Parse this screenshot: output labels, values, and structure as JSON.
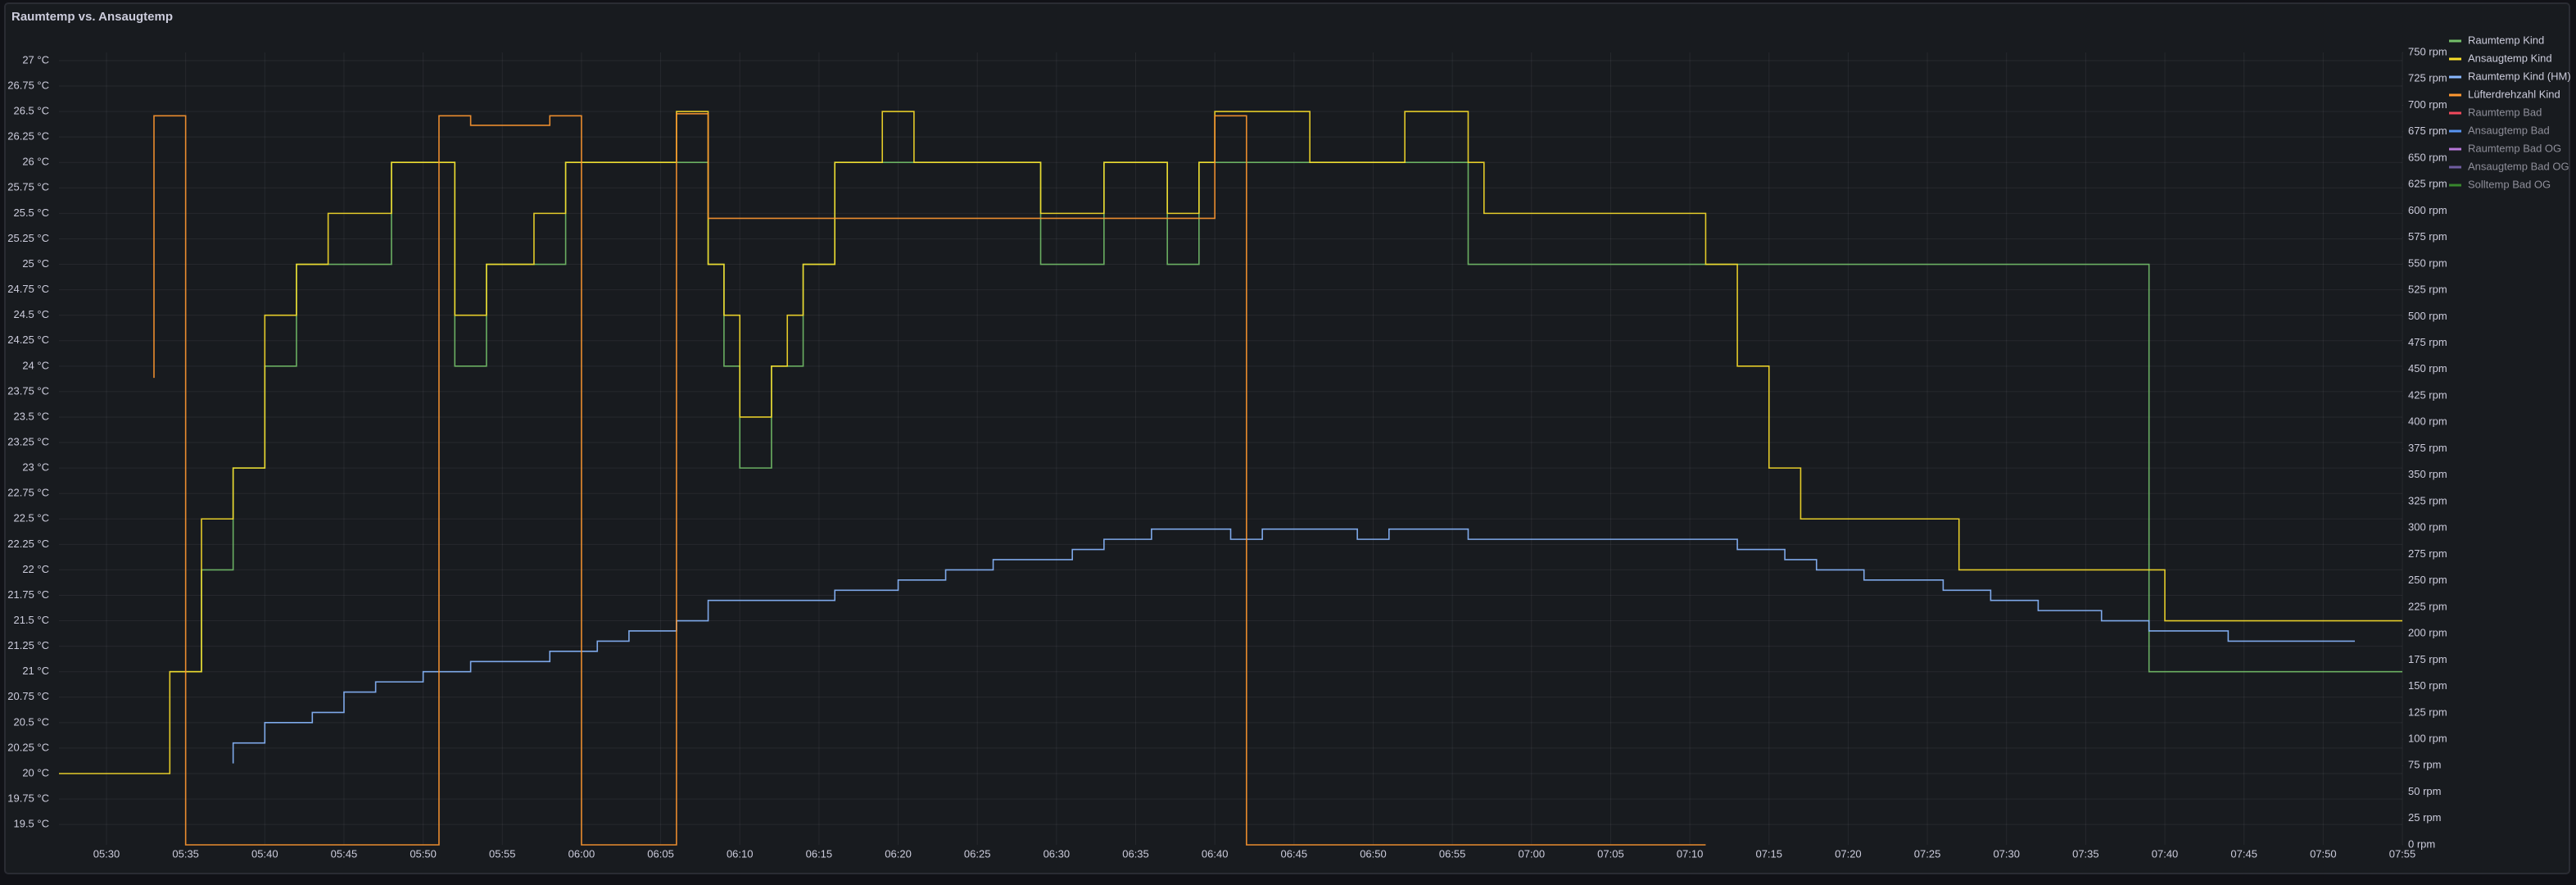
{
  "chart_data": {
    "type": "line",
    "title": "Raumtemp vs. Ansaugtemp",
    "grid": true,
    "legend": "right",
    "interpolation": "step-after",
    "xlim": [
      "05:27",
      "07:55"
    ],
    "xticks": [
      "05:30",
      "05:35",
      "05:40",
      "05:45",
      "05:50",
      "05:55",
      "06:00",
      "06:05",
      "06:10",
      "06:15",
      "06:20",
      "06:25",
      "06:30",
      "06:35",
      "06:40",
      "06:45",
      "06:50",
      "06:55",
      "07:00",
      "07:05",
      "07:10",
      "07:15",
      "07:20",
      "07:25",
      "07:30",
      "07:35",
      "07:40",
      "07:45",
      "07:50",
      "07:55"
    ],
    "ylim": [
      19.3,
      27.08
    ],
    "yticks": [
      {
        "value": 19.5,
        "label": "19.5 °C"
      },
      {
        "value": 19.75,
        "label": "19.75 °C"
      },
      {
        "value": 20,
        "label": "20 °C"
      },
      {
        "value": 20.25,
        "label": "20.25 °C"
      },
      {
        "value": 20.5,
        "label": "20.5 °C"
      },
      {
        "value": 20.75,
        "label": "20.75 °C"
      },
      {
        "value": 21,
        "label": "21 °C"
      },
      {
        "value": 21.25,
        "label": "21.25 °C"
      },
      {
        "value": 21.5,
        "label": "21.5 °C"
      },
      {
        "value": 21.75,
        "label": "21.75 °C"
      },
      {
        "value": 22,
        "label": "22 °C"
      },
      {
        "value": 22.25,
        "label": "22.25 °C"
      },
      {
        "value": 22.5,
        "label": "22.5 °C"
      },
      {
        "value": 22.75,
        "label": "22.75 °C"
      },
      {
        "value": 23,
        "label": "23 °C"
      },
      {
        "value": 23.25,
        "label": "23.25 °C"
      },
      {
        "value": 23.5,
        "label": "23.5 °C"
      },
      {
        "value": 23.75,
        "label": "23.75 °C"
      },
      {
        "value": 24,
        "label": "24 °C"
      },
      {
        "value": 24.25,
        "label": "24.25 °C"
      },
      {
        "value": 24.5,
        "label": "24.5 °C"
      },
      {
        "value": 24.75,
        "label": "24.75 °C"
      },
      {
        "value": 25,
        "label": "25 °C"
      },
      {
        "value": 25.25,
        "label": "25.25 °C"
      },
      {
        "value": 25.5,
        "label": "25.5 °C"
      },
      {
        "value": 25.75,
        "label": "25.75 °C"
      },
      {
        "value": 26,
        "label": "26 °C"
      },
      {
        "value": 26.25,
        "label": "26.25 °C"
      },
      {
        "value": 26.5,
        "label": "26.5 °C"
      },
      {
        "value": 26.75,
        "label": "26.75 °C"
      },
      {
        "value": 27,
        "label": "27 °C"
      }
    ],
    "y2lim": [
      0,
      750
    ],
    "y2ticks": [
      {
        "value": 0,
        "label": "0 rpm"
      },
      {
        "value": 25,
        "label": "25 rpm"
      },
      {
        "value": 50,
        "label": "50 rpm"
      },
      {
        "value": 75,
        "label": "75 rpm"
      },
      {
        "value": 100,
        "label": "100 rpm"
      },
      {
        "value": 125,
        "label": "125 rpm"
      },
      {
        "value": 150,
        "label": "150 rpm"
      },
      {
        "value": 175,
        "label": "175 rpm"
      },
      {
        "value": 200,
        "label": "200 rpm"
      },
      {
        "value": 225,
        "label": "225 rpm"
      },
      {
        "value": 250,
        "label": "250 rpm"
      },
      {
        "value": 275,
        "label": "275 rpm"
      },
      {
        "value": 300,
        "label": "300 rpm"
      },
      {
        "value": 325,
        "label": "325 rpm"
      },
      {
        "value": 350,
        "label": "350 rpm"
      },
      {
        "value": 375,
        "label": "375 rpm"
      },
      {
        "value": 400,
        "label": "400 rpm"
      },
      {
        "value": 425,
        "label": "425 rpm"
      },
      {
        "value": 450,
        "label": "450 rpm"
      },
      {
        "value": 475,
        "label": "475 rpm"
      },
      {
        "value": 500,
        "label": "500 rpm"
      },
      {
        "value": 525,
        "label": "525 rpm"
      },
      {
        "value": 550,
        "label": "550 rpm"
      },
      {
        "value": 575,
        "label": "575 rpm"
      },
      {
        "value": 600,
        "label": "600 rpm"
      },
      {
        "value": 625,
        "label": "625 rpm"
      },
      {
        "value": 650,
        "label": "650 rpm"
      },
      {
        "value": 675,
        "label": "675 rpm"
      },
      {
        "value": 700,
        "label": "700 rpm"
      },
      {
        "value": 725,
        "label": "725 rpm"
      },
      {
        "value": 750,
        "label": "750 rpm"
      }
    ],
    "series": [
      {
        "name": "Raumtemp Kind",
        "color": "#73bf69",
        "x": [
          "05:34",
          "05:36",
          "05:38",
          "05:40",
          "05:42",
          "05:48",
          "05:52",
          "05:54",
          "05:59",
          "06:08",
          "06:09",
          "06:10",
          "06:12",
          "06:14",
          "06:16",
          "06:29",
          "06:33",
          "06:37",
          "06:39",
          "06:56",
          "07:39",
          "07:55"
        ],
        "values": [
          21,
          22,
          23,
          24,
          25,
          26,
          24,
          25,
          26,
          25,
          24,
          23,
          24,
          25,
          26,
          25,
          26,
          25,
          26,
          25,
          21,
          21
        ]
      },
      {
        "name": "Ansaugtemp Kind",
        "color": "#fade2a",
        "x": [
          "05:27",
          "05:34",
          "05:36",
          "05:38",
          "05:40",
          "05:42",
          "05:44",
          "05:48",
          "05:52",
          "05:54",
          "05:57",
          "05:59",
          "06:06",
          "06:08",
          "06:09",
          "06:10",
          "06:12",
          "06:13",
          "06:14",
          "06:16",
          "06:19",
          "06:21",
          "06:29",
          "06:33",
          "06:37",
          "06:39",
          "06:40",
          "06:46",
          "06:52",
          "06:56",
          "06:57",
          "07:11",
          "07:13",
          "07:15",
          "07:17",
          "07:27",
          "07:40",
          "07:55"
        ],
        "values": [
          20,
          21,
          22.5,
          23,
          24.5,
          25,
          25.5,
          26,
          24.5,
          25,
          25.5,
          26,
          26.5,
          25,
          24.5,
          23.5,
          24,
          24.5,
          25,
          26,
          26.5,
          26,
          25.5,
          26,
          25.5,
          26,
          26.5,
          26,
          26.5,
          26,
          25.5,
          25,
          24,
          23,
          22.5,
          22,
          21.5,
          21.5
        ]
      },
      {
        "name": "Raumtemp Kind (HM)",
        "color": "#8ab8ff",
        "x": [
          "05:38",
          "05:38",
          "05:40",
          "05:43",
          "05:45",
          "05:47",
          "05:50",
          "05:53",
          "05:58",
          "06:01",
          "06:03",
          "06:06",
          "06:08",
          "06:16",
          "06:20",
          "06:23",
          "06:26",
          "06:31",
          "06:33",
          "06:36",
          "06:41",
          "06:43",
          "06:49",
          "06:51",
          "06:56",
          "07:13",
          "07:16",
          "07:18",
          "07:21",
          "07:26",
          "07:29",
          "07:32",
          "07:36",
          "07:39",
          "07:44",
          "07:52"
        ],
        "values": [
          20.1,
          20.3,
          20.5,
          20.6,
          20.8,
          20.9,
          21,
          21.1,
          21.2,
          21.3,
          21.4,
          21.5,
          21.7,
          21.8,
          21.9,
          22,
          22.1,
          22.2,
          22.3,
          22.4,
          22.3,
          22.4,
          22.3,
          22.4,
          22.3,
          22.2,
          22.1,
          22,
          21.9,
          21.8,
          21.7,
          21.6,
          21.5,
          21.4,
          21.3,
          21.3
        ]
      },
      {
        "name": "Lüfterdrehzahl Kind",
        "color": "#ff9830",
        "axis": "y2",
        "x": [
          "05:33",
          "05:33",
          "05:35",
          "05:51",
          "05:53",
          "05:58",
          "06:00",
          "06:06",
          "06:08",
          "06:40",
          "06:42",
          "07:11"
        ],
        "values": [
          442,
          690,
          0,
          690,
          681,
          690,
          0,
          692,
          593,
          690,
          0,
          0
        ]
      },
      {
        "name": "Raumtemp Bad",
        "color": "#f2495c",
        "x": [],
        "values": []
      },
      {
        "name": "Ansaugtemp Bad",
        "color": "#5794f2",
        "x": [],
        "values": []
      },
      {
        "name": "Raumtemp Bad OG",
        "color": "#b877d9",
        "x": [],
        "values": []
      },
      {
        "name": "Ansaugtemp Bad OG",
        "color": "#705da0",
        "x": [],
        "values": []
      },
      {
        "name": "Solltemp Bad OG",
        "color": "#37872d",
        "x": [],
        "values": []
      }
    ]
  }
}
